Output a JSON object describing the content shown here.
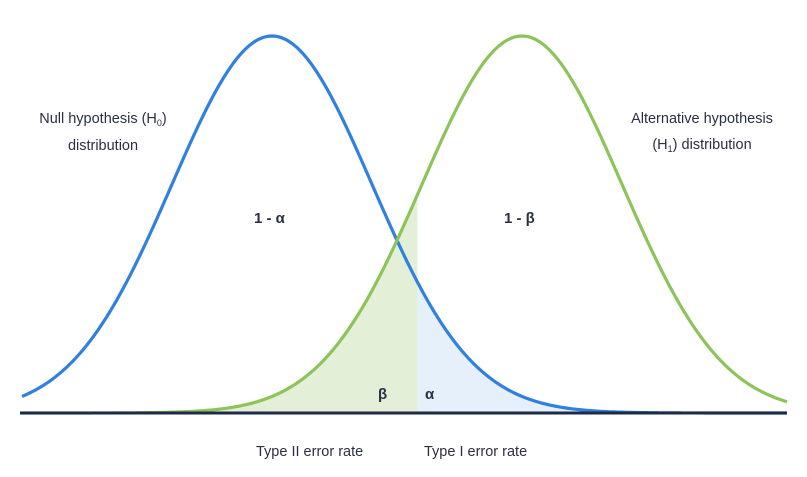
{
  "labels": {
    "null_line1": "Null hypothesis (H",
    "null_sub": "0",
    "null_line1_end": ")",
    "null_line2": "distribution",
    "alt_line1": "Alternative hypothesis",
    "alt_line2_start": "(H",
    "alt_sub": "1",
    "alt_line2_end": ") distribution",
    "one_minus_alpha": "1 - α",
    "one_minus_beta": "1 - β",
    "beta": "β",
    "alpha": "α",
    "type2": "Type II error rate",
    "type1": "Type I error rate"
  },
  "colors": {
    "null_curve": "#2f80e0",
    "alt_curve": "#8cc45a",
    "beta_fill": "#e3efd6",
    "alpha_fill": "#e6f0fb",
    "axis": "#1f2a48",
    "text": "#2b2f45"
  },
  "distributions": {
    "null": {
      "mean": 0,
      "sd": 1
    },
    "alternative": {
      "mean": 2.5,
      "sd": 1
    },
    "critical_value": 1.45
  }
}
